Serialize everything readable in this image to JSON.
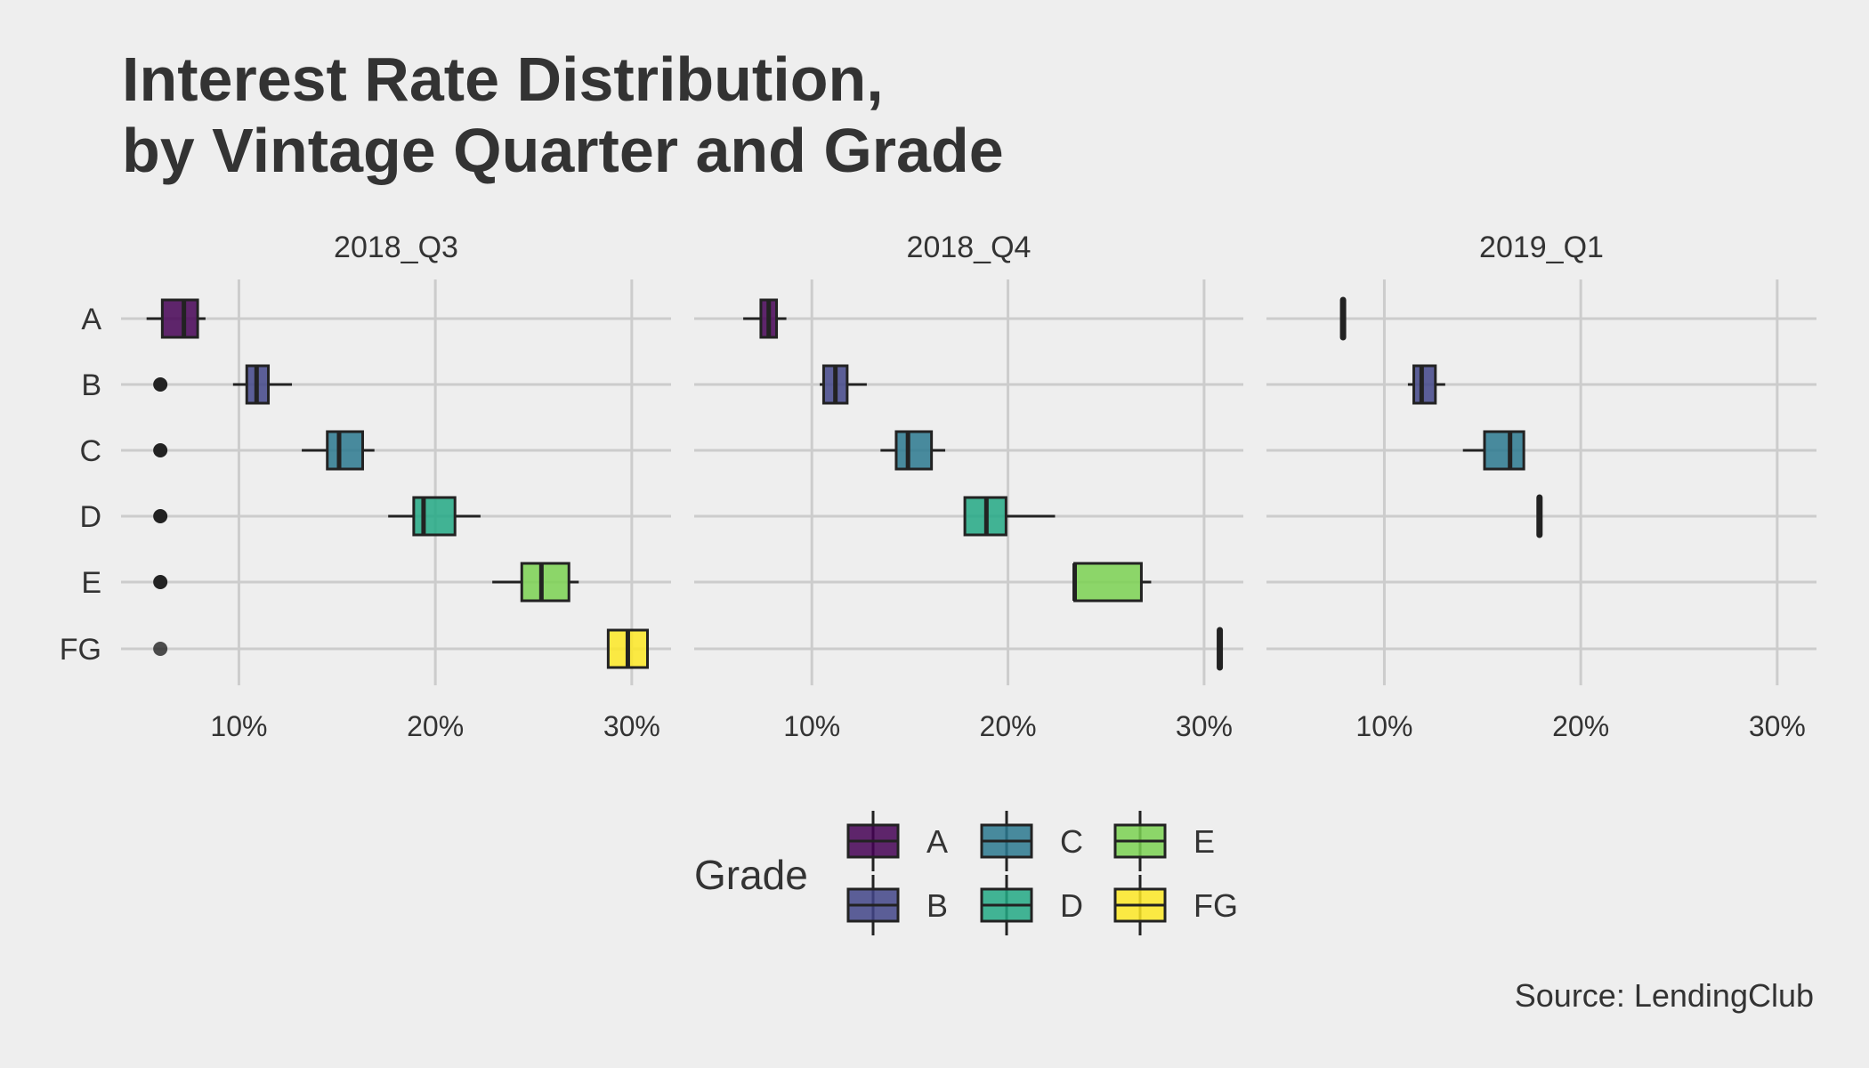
{
  "chart_data": {
    "type": "boxplot",
    "title_lines": [
      "Interest Rate Distribution,",
      "by Vintage Quarter and Grade"
    ],
    "caption": "Source: LendingClub",
    "xlabel": "",
    "ylabel": "",
    "xlim": [
      4,
      32
    ],
    "x_ticks": [
      10,
      20,
      30
    ],
    "x_tick_labels": [
      "10%",
      "20%",
      "30%"
    ],
    "grades": [
      "A",
      "B",
      "C",
      "D",
      "E",
      "FG"
    ],
    "grid": true,
    "legend": {
      "title": "Grade",
      "placement": "bottom",
      "items": [
        {
          "label": "A",
          "color": "#440154"
        },
        {
          "label": "B",
          "color": "#414487"
        },
        {
          "label": "C",
          "color": "#2a788e"
        },
        {
          "label": "D",
          "color": "#22a884"
        },
        {
          "label": "E",
          "color": "#7ad151"
        },
        {
          "label": "FG",
          "color": "#fde725"
        }
      ]
    },
    "facets": [
      {
        "label": "2018_Q3",
        "boxes": [
          {
            "grade": "A",
            "whisker_low": 5.3,
            "q1": 6.1,
            "median": 7.2,
            "q3": 7.9,
            "whisker_high": 8.3,
            "outliers": []
          },
          {
            "grade": "B",
            "whisker_low": 9.7,
            "q1": 10.4,
            "median": 10.9,
            "q3": 11.5,
            "whisker_high": 12.7,
            "outliers": [
              6.0
            ]
          },
          {
            "grade": "C",
            "whisker_low": 13.2,
            "q1": 14.5,
            "median": 15.1,
            "q3": 16.3,
            "whisker_high": 16.9,
            "outliers": [
              6.0
            ]
          },
          {
            "grade": "D",
            "whisker_low": 17.6,
            "q1": 18.9,
            "median": 19.4,
            "q3": 21.0,
            "whisker_high": 22.3,
            "outliers": [
              6.0
            ]
          },
          {
            "grade": "E",
            "whisker_low": 22.9,
            "q1": 24.4,
            "median": 25.4,
            "q3": 26.8,
            "whisker_high": 27.3,
            "outliers": [
              6.0
            ]
          },
          {
            "grade": "FG",
            "whisker_low": 28.8,
            "q1": 28.8,
            "median": 29.8,
            "q3": 30.8,
            "whisker_high": 30.8,
            "outliers": [
              6.0
            ]
          }
        ]
      },
      {
        "label": "2018_Q4",
        "boxes": [
          {
            "grade": "A",
            "whisker_low": 6.5,
            "q1": 7.4,
            "median": 7.8,
            "q3": 8.2,
            "whisker_high": 8.7,
            "outliers": []
          },
          {
            "grade": "B",
            "whisker_low": 10.4,
            "q1": 10.6,
            "median": 11.2,
            "q3": 11.8,
            "whisker_high": 12.8,
            "outliers": []
          },
          {
            "grade": "C",
            "whisker_low": 13.5,
            "q1": 14.3,
            "median": 14.9,
            "q3": 16.1,
            "whisker_high": 16.8,
            "outliers": []
          },
          {
            "grade": "D",
            "whisker_low": 17.8,
            "q1": 17.8,
            "median": 18.9,
            "q3": 19.9,
            "whisker_high": 22.4,
            "outliers": []
          },
          {
            "grade": "E",
            "whisker_low": 23.4,
            "q1": 23.4,
            "median": 23.4,
            "q3": 26.8,
            "whisker_high": 27.3,
            "outliers": []
          },
          {
            "grade": "FG",
            "whisker_low": 30.8,
            "q1": 30.8,
            "median": 30.8,
            "q3": 30.8,
            "whisker_high": 30.8,
            "outliers": []
          }
        ]
      },
      {
        "label": "2019_Q1",
        "boxes": [
          {
            "grade": "A",
            "whisker_low": 7.9,
            "q1": 7.9,
            "median": 7.9,
            "q3": 7.9,
            "whisker_high": 7.9,
            "outliers": []
          },
          {
            "grade": "B",
            "whisker_low": 11.2,
            "q1": 11.5,
            "median": 11.9,
            "q3": 12.6,
            "whisker_high": 13.1,
            "outliers": []
          },
          {
            "grade": "C",
            "whisker_low": 14.0,
            "q1": 15.1,
            "median": 16.4,
            "q3": 17.1,
            "whisker_high": 17.1,
            "outliers": []
          },
          {
            "grade": "D",
            "whisker_low": 17.9,
            "q1": 17.9,
            "median": 17.9,
            "q3": 17.9,
            "whisker_high": 17.9,
            "outliers": []
          },
          {
            "grade": "E",
            "whisker_low": null,
            "q1": null,
            "median": null,
            "q3": null,
            "whisker_high": null,
            "outliers": []
          },
          {
            "grade": "FG",
            "whisker_low": null,
            "q1": null,
            "median": null,
            "q3": null,
            "whisker_high": null,
            "outliers": []
          }
        ]
      }
    ]
  }
}
